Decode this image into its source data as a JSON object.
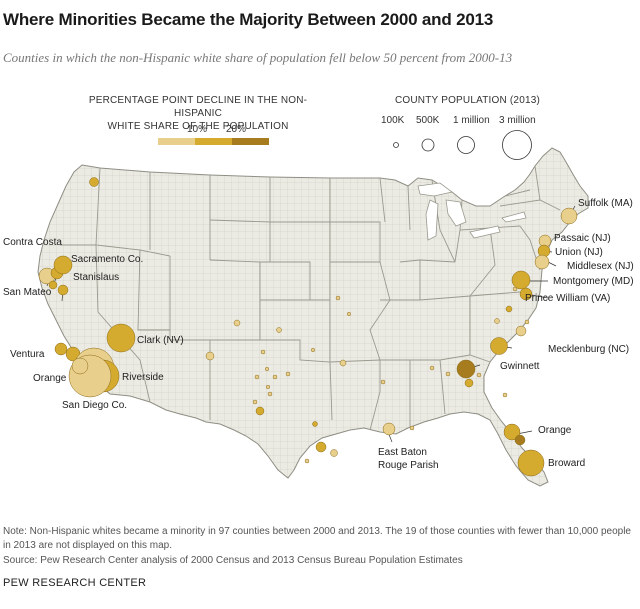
{
  "title": "Where Minorities Became the Majority Between 2000 and 2013",
  "subtitle": "Counties in which the non-Hispanic white share of population fell below 50 percent from 2000-13",
  "legend": {
    "decline_heading_1": "PERCENTAGE POINT DECLINE IN THE NON-HISPANIC",
    "decline_heading_2": "WHITE SHARE OF THE POPULATION",
    "decline_ticks": [
      "10%",
      "20%"
    ],
    "colors": [
      "#e8cf8c",
      "#d4aa2f",
      "#a67c1e"
    ],
    "population_heading": "COUNTY POPULATION (2013)",
    "population_sizes": [
      "100K",
      "500K",
      "1 million",
      "3 million"
    ]
  },
  "map_data": {
    "type": "proportional-symbol-map",
    "region": "Contiguous United States",
    "labeled_counties": [
      {
        "name": "Suffolk (MA)"
      },
      {
        "name": "Passaic (NJ)"
      },
      {
        "name": "Union (NJ)"
      },
      {
        "name": "Middlesex (NJ)"
      },
      {
        "name": "Montgomery (MD)"
      },
      {
        "name": "Prince William (VA)"
      },
      {
        "name": "Mecklenburg (NC)"
      },
      {
        "name": "Gwinnett"
      },
      {
        "name": "Orange"
      },
      {
        "name": "Broward"
      },
      {
        "name": "East Baton"
      },
      {
        "name": "Rouge Parish"
      },
      {
        "name": "Clark (NV)"
      },
      {
        "name": "Riverside"
      },
      {
        "name": "San Diego Co."
      },
      {
        "name": "Orange"
      },
      {
        "name": "Ventura"
      },
      {
        "name": "San Mateo"
      },
      {
        "name": "Stanislaus"
      },
      {
        "name": "Sacramento Co."
      },
      {
        "name": "Contra Costa"
      }
    ]
  },
  "note": "Note: Non-Hispanic whites became a minority in 97 counties between 2000 and 2013. The 19 of those counties with fewer than 10,000 people in 2013 are not displayed on this map.",
  "source": "Source: Pew Research Center analysis of 2000 Census and 2013 Census Bureau Population Estimates",
  "brand": "PEW RESEARCH CENTER"
}
